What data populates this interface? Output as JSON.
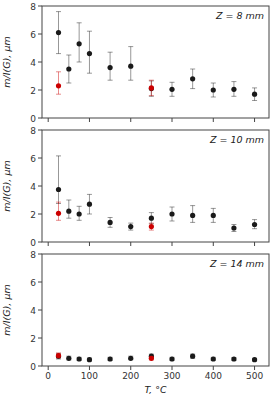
{
  "chart_data": [
    {
      "type": "scatter",
      "annotation": "Z = 8 mm",
      "ylabel": "m/I(G), μm",
      "xlim": [
        -15,
        535
      ],
      "xticks": [
        0,
        100,
        200,
        300,
        400,
        500
      ],
      "ylim": [
        0,
        8
      ],
      "yticks": [
        0,
        2,
        4,
        6,
        8
      ],
      "tick_labels": "y",
      "series": [
        {
          "color": "#1a1a1a",
          "x": [
            25,
            50,
            75,
            100,
            150,
            200,
            250,
            300,
            350,
            400,
            450,
            500
          ],
          "values": [
            6.1,
            3.5,
            5.3,
            4.6,
            3.6,
            3.7,
            2.1,
            2.05,
            2.8,
            2.0,
            2.05,
            1.7
          ],
          "yerr_lo": [
            1.5,
            1.0,
            1.3,
            1.4,
            0.9,
            1.0,
            0.55,
            0.5,
            0.7,
            0.5,
            0.5,
            0.45
          ],
          "yerr_hi": [
            1.5,
            1.0,
            1.5,
            1.6,
            1.1,
            1.4,
            0.55,
            0.5,
            0.7,
            0.5,
            0.55,
            0.45
          ]
        },
        {
          "color": "#cc0000",
          "x": [
            25,
            250
          ],
          "values": [
            2.3,
            2.15
          ],
          "yerr_lo": [
            0.6,
            0.55
          ],
          "yerr_hi": [
            1.0,
            0.55
          ]
        }
      ]
    },
    {
      "type": "scatter",
      "annotation": "Z = 10 mm",
      "ylabel": "m/I(G), μm",
      "xlim": [
        -15,
        535
      ],
      "xticks": [
        0,
        100,
        200,
        300,
        400,
        500
      ],
      "ylim": [
        0,
        8
      ],
      "yticks": [
        0,
        2,
        4,
        6,
        8
      ],
      "tick_labels": "y",
      "series": [
        {
          "color": "#1a1a1a",
          "x": [
            25,
            50,
            75,
            100,
            150,
            200,
            250,
            300,
            350,
            400,
            450,
            500
          ],
          "values": [
            3.75,
            2.2,
            2.0,
            2.7,
            1.4,
            1.1,
            1.7,
            2.0,
            1.9,
            1.9,
            1.0,
            1.25
          ],
          "yerr_lo": [
            1.0,
            0.5,
            0.45,
            0.7,
            0.35,
            0.25,
            0.4,
            0.5,
            0.5,
            0.5,
            0.25,
            0.3
          ],
          "yerr_hi": [
            2.4,
            0.8,
            0.55,
            0.7,
            0.35,
            0.25,
            0.4,
            0.5,
            0.7,
            0.5,
            0.25,
            0.35
          ]
        },
        {
          "color": "#cc0000",
          "x": [
            25,
            250
          ],
          "values": [
            2.05,
            1.1
          ],
          "yerr_lo": [
            0.5,
            0.25
          ],
          "yerr_hi": [
            0.8,
            0.25
          ]
        }
      ]
    },
    {
      "type": "scatter",
      "annotation": "Z = 14 mm",
      "ylabel": "m/I(G), μm",
      "xlabel": "T, °C",
      "xlim": [
        -15,
        535
      ],
      "xticks": [
        0,
        100,
        200,
        300,
        400,
        500
      ],
      "ylim": [
        0,
        8
      ],
      "yticks": [
        0,
        2,
        4,
        6,
        8
      ],
      "series": [
        {
          "color": "#1a1a1a",
          "x": [
            25,
            50,
            75,
            100,
            150,
            200,
            250,
            300,
            350,
            400,
            450,
            500
          ],
          "values": [
            0.7,
            0.55,
            0.5,
            0.45,
            0.5,
            0.55,
            0.7,
            0.5,
            0.7,
            0.5,
            0.5,
            0.45
          ],
          "yerr_lo": [
            0.2,
            0.12,
            0.1,
            0.1,
            0.1,
            0.1,
            0.15,
            0.1,
            0.15,
            0.1,
            0.1,
            0.1
          ],
          "yerr_hi": [
            0.2,
            0.15,
            0.12,
            0.12,
            0.12,
            0.15,
            0.15,
            0.12,
            0.15,
            0.12,
            0.1,
            0.1
          ]
        },
        {
          "color": "#cc0000",
          "x": [
            25,
            250
          ],
          "values": [
            0.75,
            0.55
          ],
          "yerr_lo": [
            0.18,
            0.12
          ],
          "yerr_hi": [
            0.18,
            0.12
          ]
        }
      ]
    }
  ]
}
